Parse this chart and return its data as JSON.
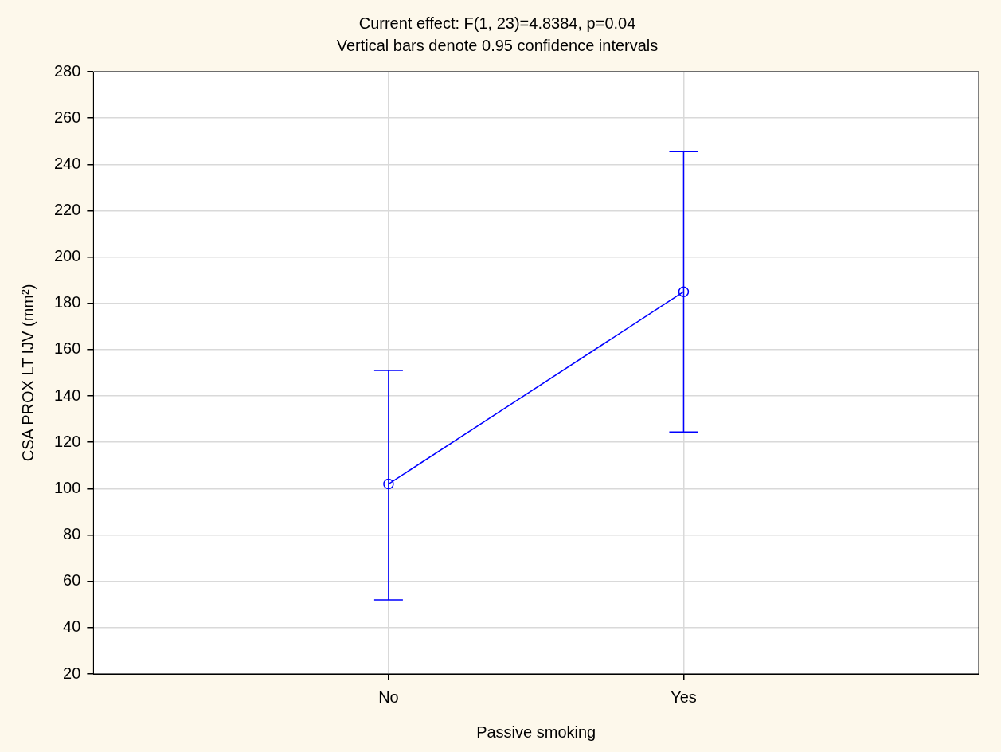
{
  "chart_data": {
    "type": "line",
    "title": "Current effect: F(1, 23)=4.8384, p=0.04",
    "subtitle": "Vertical bars denote 0.95 confidence intervals",
    "xlabel": "Passive smoking",
    "ylabel": "CSA PROX LT IJV (mm²)",
    "categories": [
      "No",
      "Yes"
    ],
    "series": [
      {
        "color": "#0000ff",
        "values": [
          102,
          185
        ],
        "errors": [
          [
            52,
            151
          ],
          [
            124.5,
            245.5
          ]
        ]
      }
    ],
    "ylim": [
      20,
      280
    ],
    "yticks": [
      20,
      40,
      60,
      80,
      100,
      120,
      140,
      160,
      180,
      200,
      220,
      240,
      260,
      280
    ],
    "grid": true,
    "marker": "circle",
    "line_style": "solid",
    "legend": false
  }
}
